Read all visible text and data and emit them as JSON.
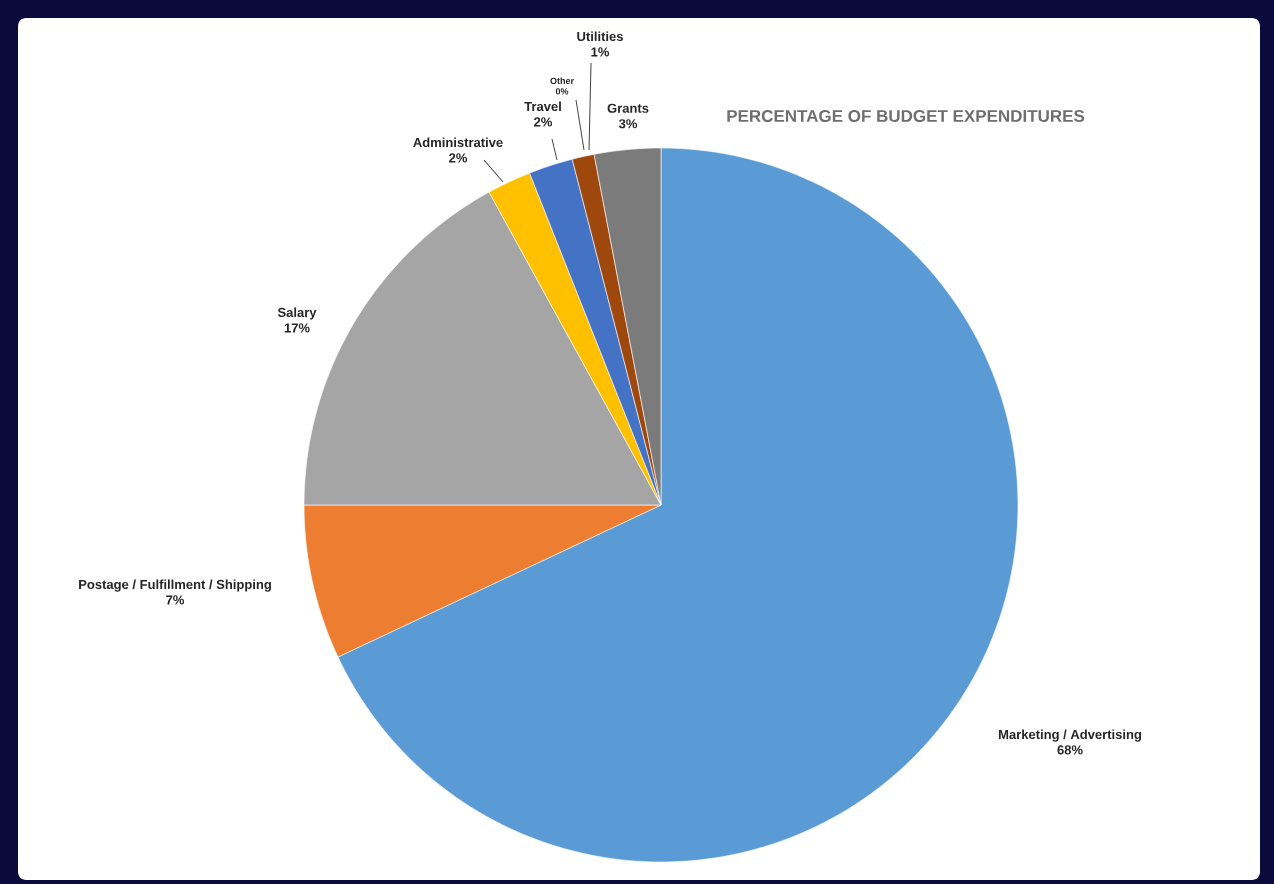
{
  "chart_data": {
    "type": "pie",
    "title": "PERCENTAGE OF BUDGET EXPENDITURES",
    "categories": [
      "Marketing / Advertising",
      "Postage / Fulfillment / Shipping",
      "Salary",
      "Administrative",
      "Travel",
      "Other",
      "Utilities",
      "Grants"
    ],
    "values": [
      68,
      7,
      17,
      2,
      2,
      0,
      1,
      3
    ],
    "value_labels": [
      "68%",
      "7%",
      "17%",
      "2%",
      "2%",
      "0%",
      "1%",
      "3%"
    ],
    "colors": [
      "#5b9bd5",
      "#ed7d31",
      "#a5a5a5",
      "#ffc000",
      "#4472c4",
      "#70ad47",
      "#9e480e",
      "#7b7b7b"
    ]
  }
}
